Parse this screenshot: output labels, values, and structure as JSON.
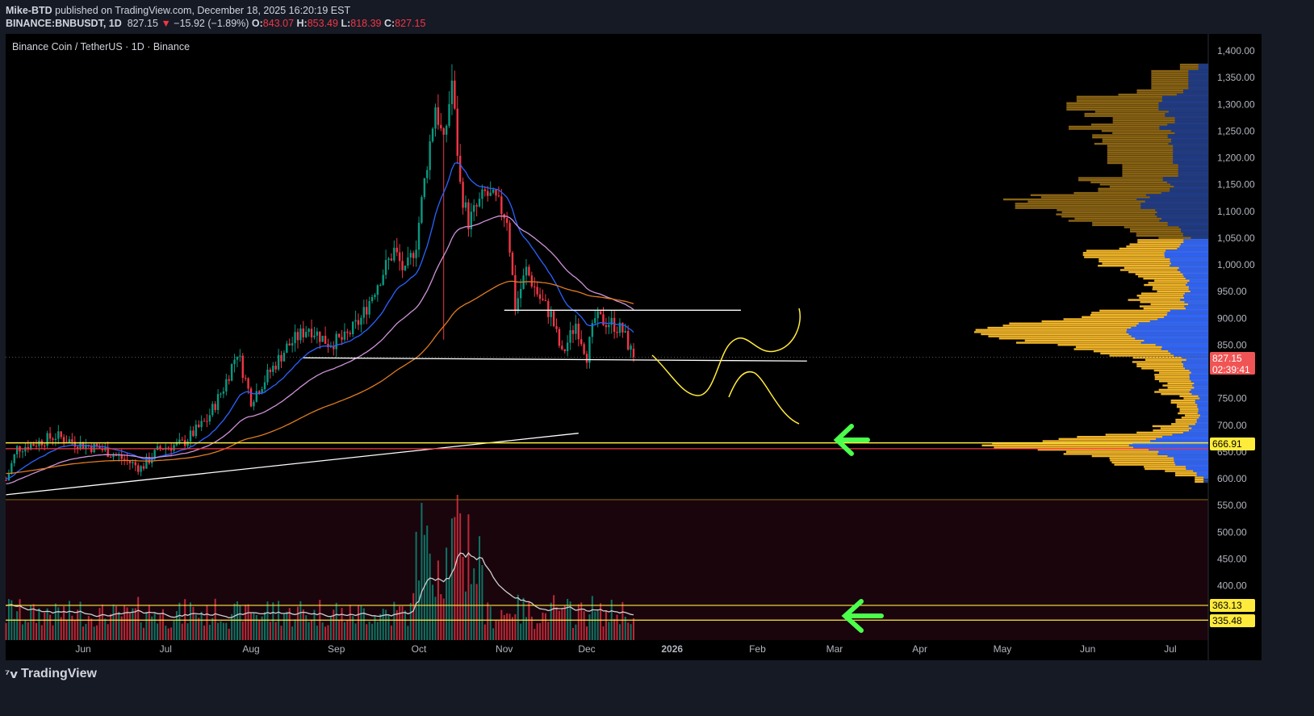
{
  "header": {
    "author": "Mike-BTD",
    "published": "published on TradingView.com, December 18, 2025 16:20:19 EST",
    "symbol": "BINANCE:BNBUSDT, 1D",
    "last": "827.15",
    "change": "−15.92 (−1.89%)",
    "o_label": "O:",
    "o": "843.07",
    "h_label": "H:",
    "h": "853.49",
    "l_label": "L:",
    "l": "818.39",
    "c_label": "C:",
    "c": "827.15"
  },
  "legend_title": "Binance Coin / TetherUS · 1D · Binance",
  "price_tags": {
    "last": "827.15",
    "countdown": "02:39:41",
    "level1": "666.91",
    "level2": "363.13",
    "level3": "335.48"
  },
  "footer": {
    "brand": "TradingView"
  },
  "colors": {
    "up": "#089981",
    "down": "#f23645",
    "ema_fast": "#2962ff",
    "ema_mid": "#ce93d8",
    "ema_slow": "#e07b22",
    "level": "#ffeb3b",
    "arrow": "#4cff4c",
    "profile_up": "#f0b429",
    "profile_value_area": "#2962ff"
  },
  "chart_data": {
    "type": "candlestick",
    "symbol": "BNBUSDT",
    "interval": "1D",
    "yaxis": {
      "ticks": [
        1400,
        1350,
        1300,
        1250,
        1200,
        1150,
        1100,
        1050,
        1000,
        950,
        900,
        850,
        750,
        700,
        650,
        600,
        550,
        500,
        450,
        400
      ],
      "range": [
        330,
        1410
      ]
    },
    "xaxis": {
      "ticks": [
        "Jun",
        "Jul",
        "Aug",
        "Sep",
        "Oct",
        "Nov",
        "Dec",
        "2026",
        "Feb",
        "Mar",
        "Apr",
        "May",
        "Jun",
        "Jul"
      ]
    },
    "close_path": [
      [
        "2025-05-04",
        597
      ],
      [
        "2025-05-08",
        657
      ],
      [
        "2025-05-14",
        665
      ],
      [
        "2025-05-22",
        680
      ],
      [
        "2025-05-31",
        665
      ],
      [
        "2025-06-09",
        653
      ],
      [
        "2025-06-22",
        620
      ],
      [
        "2025-06-29",
        657
      ],
      [
        "2025-07-07",
        665
      ],
      [
        "2025-07-16",
        710
      ],
      [
        "2025-07-22",
        770
      ],
      [
        "2025-07-27",
        838
      ],
      [
        "2025-08-01",
        748
      ],
      [
        "2025-08-09",
        808
      ],
      [
        "2025-08-14",
        846
      ],
      [
        "2025-08-22",
        884
      ],
      [
        "2025-08-29",
        854
      ],
      [
        "2025-09-04",
        861
      ],
      [
        "2025-09-10",
        899
      ],
      [
        "2025-09-16",
        967
      ],
      [
        "2025-09-22",
        1027
      ],
      [
        "2025-09-26",
        982
      ],
      [
        "2025-09-30",
        1042
      ],
      [
        "2025-10-04",
        1193
      ],
      [
        "2025-10-07",
        1299
      ],
      [
        "2025-10-10",
        1223
      ],
      [
        "2025-10-13",
        1344
      ],
      [
        "2025-10-16",
        1148
      ],
      [
        "2025-10-19",
        1080
      ],
      [
        "2025-10-25",
        1133
      ],
      [
        "2025-10-29",
        1118
      ],
      [
        "2025-11-02",
        1088
      ],
      [
        "2025-11-05",
        921
      ],
      [
        "2025-11-09",
        990
      ],
      [
        "2025-11-14",
        937
      ],
      [
        "2025-11-18",
        906
      ],
      [
        "2025-11-22",
        831
      ],
      [
        "2025-11-27",
        891
      ],
      [
        "2025-12-01",
        831
      ],
      [
        "2025-12-04",
        899
      ],
      [
        "2025-12-10",
        891
      ],
      [
        "2025-12-14",
        876
      ],
      [
        "2025-12-18",
        827.15
      ]
    ],
    "last_bar": {
      "date": "2025-12-18",
      "open": 843.07,
      "high": 853.49,
      "low": 818.39,
      "close": 827.15
    },
    "drawings": {
      "resistance": {
        "price": 915,
        "from": "2025-11-01",
        "to": "2026-01-26"
      },
      "support": {
        "from": [
          "2025-08-20",
          826
        ],
        "to": [
          "2026-02-19",
          820
        ]
      },
      "trendline": {
        "from": [
          "2025-05-04",
          570
        ],
        "to": [
          "2025-11-28",
          685
        ]
      },
      "level_yellow": 666.91,
      "level_red": 656,
      "volume_levels": [
        363.13,
        335.48
      ]
    },
    "indicators": [
      "EMA fast",
      "EMA mid",
      "EMA slow",
      "Volume",
      "Volume MA",
      "Volume Profile"
    ]
  }
}
